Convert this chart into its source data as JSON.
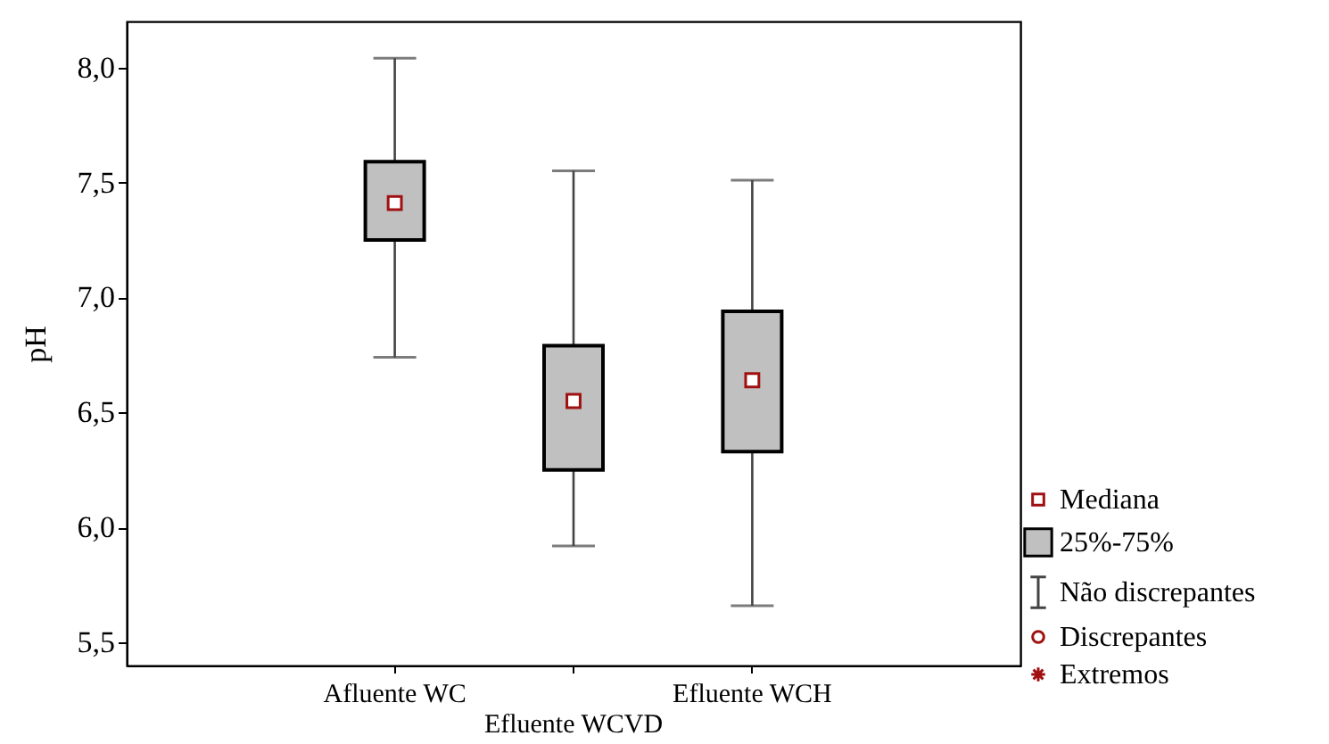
{
  "chart_data": {
    "type": "box",
    "ylabel": "pH",
    "categories": [
      "Afluente WC",
      "Efluente WCVD",
      "Efluente WCH"
    ],
    "series": [
      {
        "color": "#c0c0c0",
        "boxes": [
          {
            "low": 6.74,
            "q1": 7.25,
            "median": 7.41,
            "q3": 7.59,
            "high": 8.04
          },
          {
            "low": 5.92,
            "q1": 6.25,
            "median": 6.55,
            "q3": 6.79,
            "high": 7.55
          },
          {
            "low": 5.66,
            "q1": 6.33,
            "median": 6.64,
            "q3": 6.94,
            "high": 7.51
          }
        ]
      }
    ],
    "ylim": [
      5.4,
      8.2
    ],
    "yticks": [
      {
        "value": 5.5,
        "label": "5,5"
      },
      {
        "value": 6,
        "label": "6,0"
      },
      {
        "value": 6.5,
        "label": "6,5"
      },
      {
        "value": 7,
        "label": "7,0"
      },
      {
        "value": 7.5,
        "label": "7,5"
      },
      {
        "value": 8,
        "label": "8,0"
      }
    ],
    "annotations": [
      "Mediana",
      "25%-75%",
      "Não discrepantes",
      "Discrepantes",
      "Extremos"
    ]
  }
}
